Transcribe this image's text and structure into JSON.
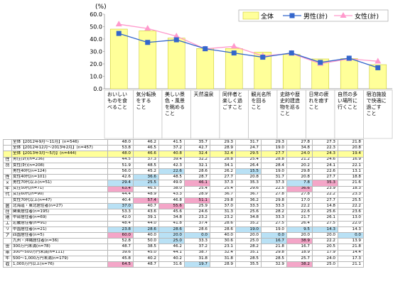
{
  "chart_data": {
    "type": "bar",
    "unit_label": "(%)",
    "ylim": [
      0,
      60
    ],
    "yticks": [
      "0.0",
      "10.0",
      "20.0",
      "30.0",
      "40.0",
      "50.0",
      "60.0"
    ],
    "categories": [
      "おいしいものを食べること",
      "気分転換をすること",
      "美しい景色・風景を眺めること",
      "天然温泉",
      "同伴者と楽しく過ごすこと",
      "観光名所を回ること",
      "史跡や歴史的建造物を巡ること",
      "日常の疲れを癒すこと",
      "自然の多い場所に行くこと",
      "宿泊施設で快適に過ごすこと"
    ],
    "categories_display": [
      "おいしい\nものを食\nべること",
      "気分転換\nをする\nこと",
      "美しい景\n色・風景\nを眺める\nこと",
      "天然温泉",
      "同伴者と\n楽しく過\nごすこと",
      "観光名所\nを回る\nこと",
      "史跡や歴\n史的建造\n物を巡る\nこと",
      "日常の疲\nれを癒す\nこと",
      "自然の多\nい場所に\n行くこと",
      "宿泊施設\nで快適に\n過ごす\nこと"
    ],
    "series": [
      {
        "name": "全体",
        "values": [
          48.0,
          46.6,
          40.8,
          32.4,
          32.4,
          29.5,
          27.7,
          24.0,
          24.3,
          19.4
        ],
        "color": "#ffff99",
        "border": "#cccc33"
      },
      {
        "name": "男性(計)",
        "values": [
          44.5,
          37.3,
          39.4,
          32.2,
          28.8,
          25.4,
          28.8,
          21.2,
          24.6,
          16.9
        ],
        "color": "#3366cc"
      },
      {
        "name": "女性(計)",
        "values": [
          51.9,
          48.5,
          42.3,
          32.1,
          34.1,
          26.4,
          28.4,
          20.2,
          24.1,
          22.1
        ]
      }
    ],
    "legend_position": "top-right",
    "table": {
      "rows": [
        {
          "group": "",
          "label": "全体【2012年9月～11月】(n=546)",
          "values": [
            "48.0",
            "46.2",
            "41.5",
            "35.7",
            "29.3",
            "31.7",
            "29.3",
            "27.8",
            "27.3",
            "21.8"
          ],
          "style": "tot"
        },
        {
          "group": "",
          "label": "全体【2012年12月～2013年2月】(n=457)",
          "values": [
            "53.8",
            "46.5",
            "37.2",
            "42.7",
            "28.9",
            "24.7",
            "19.0",
            "34.8",
            "22.3",
            "20.8"
          ],
          "style": "tot"
        },
        {
          "group": "",
          "label": "全体【2013年3月～5月】(n=444)",
          "values": [
            "48.0",
            "46.6",
            "40.8",
            "32.4",
            "32.4",
            "29.5",
            "27.7",
            "24.0",
            "24.3",
            "19.4"
          ],
          "style": "hl"
        },
        {
          "group": "性",
          "label": "男性(計)(n=236)",
          "values": [
            "44.5",
            "37.3",
            "39.4",
            "32.2",
            "28.8",
            "25.4",
            "28.8",
            "21.2",
            "24.6",
            "16.9"
          ]
        },
        {
          "group": "別",
          "label": "女性(計)(n=208)",
          "values": [
            "51.9",
            "48.5",
            "42.3",
            "32.1",
            "34.1",
            "26.4",
            "28.4",
            "20.2",
            "24.1",
            "22.1"
          ]
        },
        {
          "group": "",
          "label": "男性40代(n=124)",
          "values": [
            "56.0",
            "45.2",
            "22.6",
            "28.6",
            "26.2",
            "15.5",
            "19.0",
            "29.8",
            "22.6",
            "13.1"
          ]
        },
        {
          "group": "性",
          "label": "女性40代(n=101)",
          "values": [
            "42.6",
            "36.6",
            "48.5",
            "28.7",
            "27.7",
            "20.8",
            "31.7",
            "20.8",
            "27.7",
            "18.8"
          ]
        },
        {
          "group": "×",
          "label": "男性70代以上(n=51)",
          "values": [
            "29.4",
            "25.5",
            "49.0",
            "46.1",
            "37.3",
            "35.3",
            "37.3",
            "7.8",
            "35.3",
            "21.6"
          ]
        },
        {
          "group": "年",
          "label": "女性50代(n=71)",
          "values": [
            "63.4",
            "46.5",
            "38.0",
            "25.4",
            "25.4",
            "29.6",
            "22.5",
            "36.6",
            "23.9",
            "18.3"
          ]
        },
        {
          "group": "代",
          "label": "女性60代(n=90)",
          "values": [
            "44.4",
            "48.9",
            "43.3",
            "28.9",
            "36.7",
            "36.7",
            "27.8",
            "27.8",
            "22.2",
            "23.3"
          ]
        },
        {
          "group": "",
          "label": "女性70代以上(n=47)",
          "values": [
            "40.4",
            "57.4",
            "46.8",
            "51.1",
            "29.8",
            "36.2",
            "29.8",
            "17.0",
            "27.7",
            "25.5"
          ]
        },
        {
          "group": "居",
          "label": "北海道・東北居住者(n=27)",
          "values": [
            "37.0",
            "40.7",
            "55.6",
            "25.9",
            "37.0",
            "33.3",
            "33.3",
            "22.2",
            "14.8",
            "22.2"
          ]
        },
        {
          "group": "住",
          "label": "関東居住者(n=195)",
          "values": [
            "53.3",
            "43.6",
            "45.6",
            "24.6",
            "31.3",
            "25.6",
            "28.2",
            "22.6",
            "25.6",
            "23.6"
          ]
        },
        {
          "group": "地",
          "label": "中部居住者(n=69)",
          "values": [
            "42.0",
            "39.1",
            "34.8",
            "23.2",
            "23.2",
            "34.8",
            "33.3",
            "21.7",
            "26.1",
            "13.0"
          ]
        },
        {
          "group": "エ",
          "label": "近畿居住者(n=91)",
          "values": [
            "48.4",
            "44.0",
            "41.8",
            "37.4",
            "28.6",
            "35.2",
            "27.5",
            "26.4",
            "27.5",
            "22.0"
          ]
        },
        {
          "group": "リ",
          "label": "中国居住者(n=21)",
          "values": [
            "23.8",
            "28.6",
            "28.6",
            "28.6",
            "28.6",
            "19.0",
            "19.0",
            "9.5",
            "14.3",
            "14.3"
          ]
        },
        {
          "group": "ア",
          "label": "四国居住者(n=5)",
          "values": [
            "60.0",
            "40.0",
            "20.0",
            "0.0",
            "40.0",
            "20.0",
            "0.0",
            "20.0",
            "20.0",
            "0.0"
          ]
        },
        {
          "group": "",
          "label": "九州・沖縄居住者(n=36)",
          "values": [
            "52.8",
            "50.0",
            "25.0",
            "33.3",
            "30.6",
            "25.0",
            "16.7",
            "38.9",
            "22.2",
            "13.9"
          ]
        },
        {
          "group": "世",
          "label": "300万円未満(n=78)",
          "values": [
            "48.7",
            "38.5",
            "46.2",
            "37.2",
            "23.1",
            "28.2",
            "21.8",
            "16.7",
            "20.5",
            "21.8"
          ]
        },
        {
          "group": "帯",
          "label": "300～500万円未満(n=111)",
          "values": [
            "39.6",
            "45.0",
            "44.1",
            "38.7",
            "32.4",
            "35.1",
            "29.8",
            "18.9",
            "17.9",
            "14.4"
          ]
        },
        {
          "group": "年",
          "label": "500～1,000万円未満(n=179)",
          "values": [
            "45.8",
            "40.2",
            "40.2",
            "31.8",
            "31.8",
            "28.5",
            "28.5",
            "25.7",
            "24.0",
            "17.3"
          ]
        },
        {
          "group": "収",
          "label": "1,000万円以上(n=76)",
          "values": [
            "64.5",
            "48.7",
            "31.6",
            "19.7",
            "28.9",
            "35.5",
            "32.9",
            "38.2",
            "25.0",
            "21.1"
          ]
        }
      ]
    }
  },
  "colors": {
    "hi": "#f4a6c8",
    "lo": "#b9e1f5",
    "hl": "#ffff99",
    "female": "#ff99cc",
    "male": "#3366cc"
  }
}
